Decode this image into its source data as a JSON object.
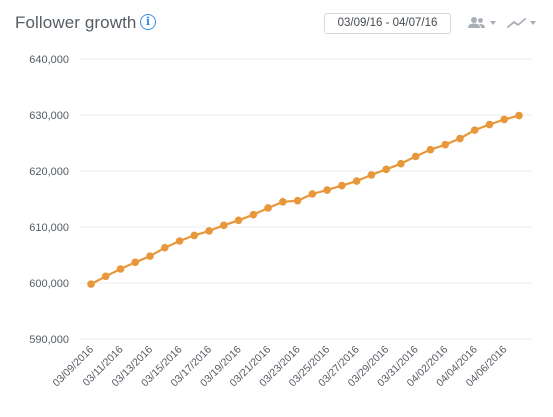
{
  "header": {
    "title": "Follower growth",
    "info_icon": "info-icon",
    "date_range": "03/09/16 - 04/07/16",
    "audience_icon": "people-icon",
    "chart_type_icon": "line-chart-icon"
  },
  "colors": {
    "series": "#e8973a",
    "info": "#3a8ee6",
    "icon_gray": "#a8afb6"
  },
  "chart_data": {
    "type": "line",
    "title": "Follower growth",
    "xlabel": "",
    "ylabel": "",
    "ylim": [
      590000,
      640000
    ],
    "yticks": [
      590000,
      600000,
      610000,
      620000,
      630000,
      640000
    ],
    "ytick_labels": [
      "590,000",
      "600,000",
      "610,000",
      "620,000",
      "630,000",
      "640,000"
    ],
    "grid": true,
    "legend": "none",
    "x": [
      "03/09/2016",
      "03/10/2016",
      "03/11/2016",
      "03/12/2016",
      "03/13/2016",
      "03/14/2016",
      "03/15/2016",
      "03/16/2016",
      "03/17/2016",
      "03/18/2016",
      "03/19/2016",
      "03/20/2016",
      "03/21/2016",
      "03/22/2016",
      "03/23/2016",
      "03/24/2016",
      "03/25/2016",
      "03/26/2016",
      "03/27/2016",
      "03/28/2016",
      "03/29/2016",
      "03/30/2016",
      "03/31/2016",
      "04/01/2016",
      "04/02/2016",
      "04/03/2016",
      "04/04/2016",
      "04/05/2016",
      "04/06/2016",
      "04/07/2016"
    ],
    "xtick_labels": [
      "03/09/2016",
      "03/11/2016",
      "03/13/2016",
      "03/15/2016",
      "03/17/2016",
      "03/19/2016",
      "03/21/2016",
      "03/23/2016",
      "03/25/2016",
      "03/27/2016",
      "03/29/2016",
      "03/31/2016",
      "04/02/2016",
      "04/04/2016",
      "04/06/2016"
    ],
    "series": [
      {
        "values": [
          599800,
          601200,
          602500,
          603700,
          604800,
          606300,
          607500,
          608500,
          609300,
          610300,
          611200,
          612200,
          613400,
          614500,
          614700,
          615900,
          616600,
          617400,
          618200,
          619300,
          620300,
          621300,
          622600,
          623800,
          624700,
          625800,
          627300,
          628300,
          629200,
          629900
        ]
      }
    ]
  }
}
